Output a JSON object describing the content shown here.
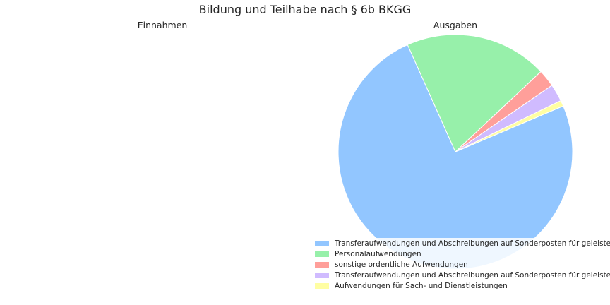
{
  "chart_data": {
    "type": "pie",
    "title": "Bildung und Teilhabe nach § 6b BKGG",
    "charts": [
      {
        "title": "Einnahmen",
        "slices": []
      },
      {
        "title": "Ausgaben",
        "slices": [
          {
            "label": "Transferaufwendungen und Abschreibungen auf Sonderposten für geleiste",
            "value": 74.7,
            "color": "#92c6ff"
          },
          {
            "label": "Personalaufwendungen",
            "value": 19.7,
            "color": "#97f0aa"
          },
          {
            "label": "sonstige ordentliche Aufwendungen",
            "value": 2.4,
            "color": "#ff9f9a"
          },
          {
            "label": "Transferaufwendungen und Abschreibungen auf Sonderposten für geleiste",
            "value": 2.4,
            "color": "#d0bbff"
          },
          {
            "label": "Aufwendungen für Sach- und Dienstleistungen",
            "value": 0.8,
            "color": "#fffea3"
          }
        ],
        "legend_placement": "lower-right"
      }
    ]
  }
}
